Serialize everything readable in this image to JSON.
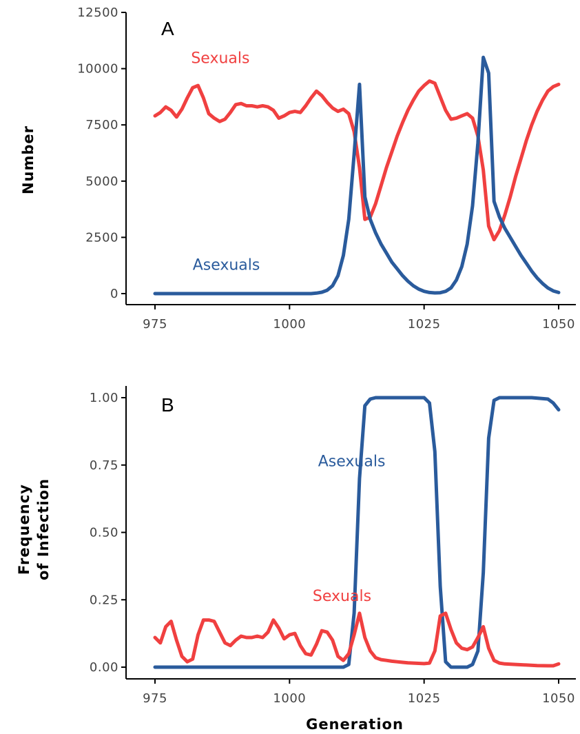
{
  "chart_data": [
    {
      "type": "line",
      "panel_label": "A",
      "xlabel": "",
      "ylabel": "Number",
      "xlim": [
        975,
        1050
      ],
      "ylim": [
        0,
        12500
      ],
      "xticks": [
        975,
        1000,
        1025,
        1050
      ],
      "xtick_labels": [
        "975",
        "1000",
        "1025",
        "1050"
      ],
      "yticks": [
        0,
        2500,
        5000,
        7500,
        10000,
        12500
      ],
      "ytick_labels": [
        "0",
        "2500",
        "5000",
        "7500",
        "10000",
        "12500"
      ],
      "series": [
        {
          "name": "Sexuals",
          "color": "#f04040",
          "x": [
            975,
            976,
            977,
            978,
            979,
            980,
            981,
            982,
            983,
            984,
            985,
            986,
            987,
            988,
            989,
            990,
            991,
            992,
            993,
            994,
            995,
            996,
            997,
            998,
            999,
            1000,
            1001,
            1002,
            1003,
            1004,
            1005,
            1006,
            1007,
            1008,
            1009,
            1010,
            1011,
            1012,
            1013,
            1014,
            1015,
            1016,
            1017,
            1018,
            1019,
            1020,
            1021,
            1022,
            1023,
            1024,
            1025,
            1026,
            1027,
            1028,
            1029,
            1030,
            1031,
            1032,
            1033,
            1034,
            1035,
            1036,
            1037,
            1038,
            1039,
            1040,
            1041,
            1042,
            1043,
            1044,
            1045,
            1046,
            1047,
            1048,
            1049,
            1050
          ],
          "y": [
            7900,
            8050,
            8300,
            8150,
            7850,
            8200,
            8700,
            9150,
            9250,
            8700,
            8000,
            7800,
            7650,
            7750,
            8050,
            8400,
            8450,
            8350,
            8350,
            8300,
            8350,
            8300,
            8150,
            7800,
            7900,
            8050,
            8100,
            8050,
            8350,
            8700,
            9000,
            8800,
            8500,
            8250,
            8100,
            8200,
            8000,
            7200,
            5600,
            3300,
            3400,
            4000,
            4800,
            5600,
            6300,
            7000,
            7600,
            8150,
            8600,
            9000,
            9250,
            9450,
            9350,
            8750,
            8150,
            7750,
            7800,
            7900,
            8000,
            7800,
            7000,
            5500,
            3000,
            2400,
            2800,
            3500,
            4300,
            5200,
            6000,
            6800,
            7500,
            8100,
            8600,
            9000,
            9200,
            9300
          ]
        },
        {
          "name": "Asexuals",
          "color": "#2a5b9c",
          "x": [
            975,
            980,
            985,
            990,
            995,
            1000,
            1004,
            1005,
            1006,
            1007,
            1008,
            1009,
            1010,
            1011,
            1012,
            1013,
            1014,
            1015,
            1016,
            1017,
            1018,
            1019,
            1020,
            1021,
            1022,
            1023,
            1024,
            1025,
            1026,
            1027,
            1028,
            1029,
            1030,
            1031,
            1032,
            1033,
            1034,
            1035,
            1036,
            1037,
            1038,
            1039,
            1040,
            1041,
            1042,
            1043,
            1044,
            1045,
            1046,
            1047,
            1048,
            1049,
            1050
          ],
          "y": [
            0,
            0,
            0,
            0,
            0,
            0,
            0,
            20,
            60,
            150,
            350,
            800,
            1700,
            3300,
            6200,
            9300,
            4300,
            3300,
            2700,
            2200,
            1800,
            1400,
            1100,
            800,
            550,
            350,
            200,
            100,
            50,
            30,
            40,
            100,
            250,
            600,
            1200,
            2200,
            3900,
            6700,
            10500,
            9800,
            4100,
            3400,
            2900,
            2500,
            2100,
            1700,
            1350,
            1000,
            700,
            450,
            250,
            120,
            50
          ]
        }
      ],
      "annotations": [
        {
          "text": "Sexuals",
          "series": "Sexuals",
          "x": 981.7,
          "y": 10250
        },
        {
          "text": "Asexuals",
          "series": "Asexuals",
          "x": 982,
          "y": 1050
        }
      ]
    },
    {
      "type": "line",
      "panel_label": "B",
      "xlabel": "Generation",
      "ylabel": "Frequency of Infection",
      "ylabel_lines": [
        "Frequency",
        "of Infection"
      ],
      "xlim": [
        975,
        1050
      ],
      "ylim": [
        0,
        1
      ],
      "xticks": [
        975,
        1000,
        1025,
        1050
      ],
      "xtick_labels": [
        "975",
        "1000",
        "1025",
        "1050"
      ],
      "yticks": [
        0,
        0.25,
        0.5,
        0.75,
        1.0
      ],
      "ytick_labels": [
        "0.00",
        "0.25",
        "0.50",
        "0.75",
        "1.00"
      ],
      "series": [
        {
          "name": "Asexuals",
          "color": "#2a5b9c",
          "x": [
            975,
            980,
            985,
            990,
            995,
            1000,
            1005,
            1010,
            1011,
            1012,
            1013,
            1014,
            1015,
            1016,
            1020,
            1025,
            1026,
            1027,
            1028,
            1029,
            1030,
            1031,
            1032,
            1033,
            1034,
            1035,
            1036,
            1037,
            1038,
            1039,
            1040,
            1045,
            1048,
            1049,
            1050
          ],
          "y": [
            0,
            0,
            0,
            0,
            0,
            0,
            0,
            0,
            0.01,
            0.2,
            0.7,
            0.97,
            0.995,
            1.0,
            1.0,
            1.0,
            0.98,
            0.8,
            0.3,
            0.02,
            0.0,
            0.0,
            0.0,
            0.0,
            0.01,
            0.06,
            0.35,
            0.85,
            0.99,
            1.0,
            1.0,
            1.0,
            0.995,
            0.98,
            0.955
          ]
        },
        {
          "name": "Sexuals",
          "color": "#f04040",
          "x": [
            975,
            976,
            977,
            978,
            979,
            980,
            981,
            982,
            983,
            984,
            985,
            986,
            987,
            988,
            989,
            990,
            991,
            992,
            993,
            994,
            995,
            996,
            997,
            998,
            999,
            1000,
            1001,
            1002,
            1003,
            1004,
            1005,
            1006,
            1007,
            1008,
            1009,
            1010,
            1011,
            1012,
            1013,
            1014,
            1015,
            1016,
            1017,
            1018,
            1019,
            1020,
            1021,
            1022,
            1023,
            1024,
            1025,
            1026,
            1027,
            1028,
            1029,
            1030,
            1031,
            1032,
            1033,
            1034,
            1035,
            1036,
            1037,
            1038,
            1039,
            1040,
            1042,
            1044,
            1046,
            1048,
            1049,
            1050
          ],
          "y": [
            0.11,
            0.09,
            0.15,
            0.17,
            0.1,
            0.04,
            0.02,
            0.03,
            0.12,
            0.175,
            0.175,
            0.17,
            0.13,
            0.09,
            0.08,
            0.1,
            0.115,
            0.11,
            0.11,
            0.115,
            0.11,
            0.13,
            0.175,
            0.145,
            0.105,
            0.12,
            0.125,
            0.08,
            0.05,
            0.045,
            0.085,
            0.135,
            0.13,
            0.1,
            0.04,
            0.025,
            0.05,
            0.12,
            0.2,
            0.11,
            0.06,
            0.035,
            0.028,
            0.025,
            0.022,
            0.02,
            0.018,
            0.016,
            0.015,
            0.014,
            0.013,
            0.015,
            0.06,
            0.19,
            0.2,
            0.14,
            0.09,
            0.07,
            0.065,
            0.075,
            0.11,
            0.15,
            0.07,
            0.025,
            0.015,
            0.012,
            0.01,
            0.008,
            0.006,
            0.005,
            0.005,
            0.012
          ]
        }
      ],
      "annotations": [
        {
          "text": "Asexuals",
          "series": "Asexuals",
          "x": 1005.3,
          "y": 0.745
        },
        {
          "text": "Sexuals",
          "series": "Sexuals",
          "x": 1004.3,
          "y": 0.245
        }
      ]
    }
  ]
}
